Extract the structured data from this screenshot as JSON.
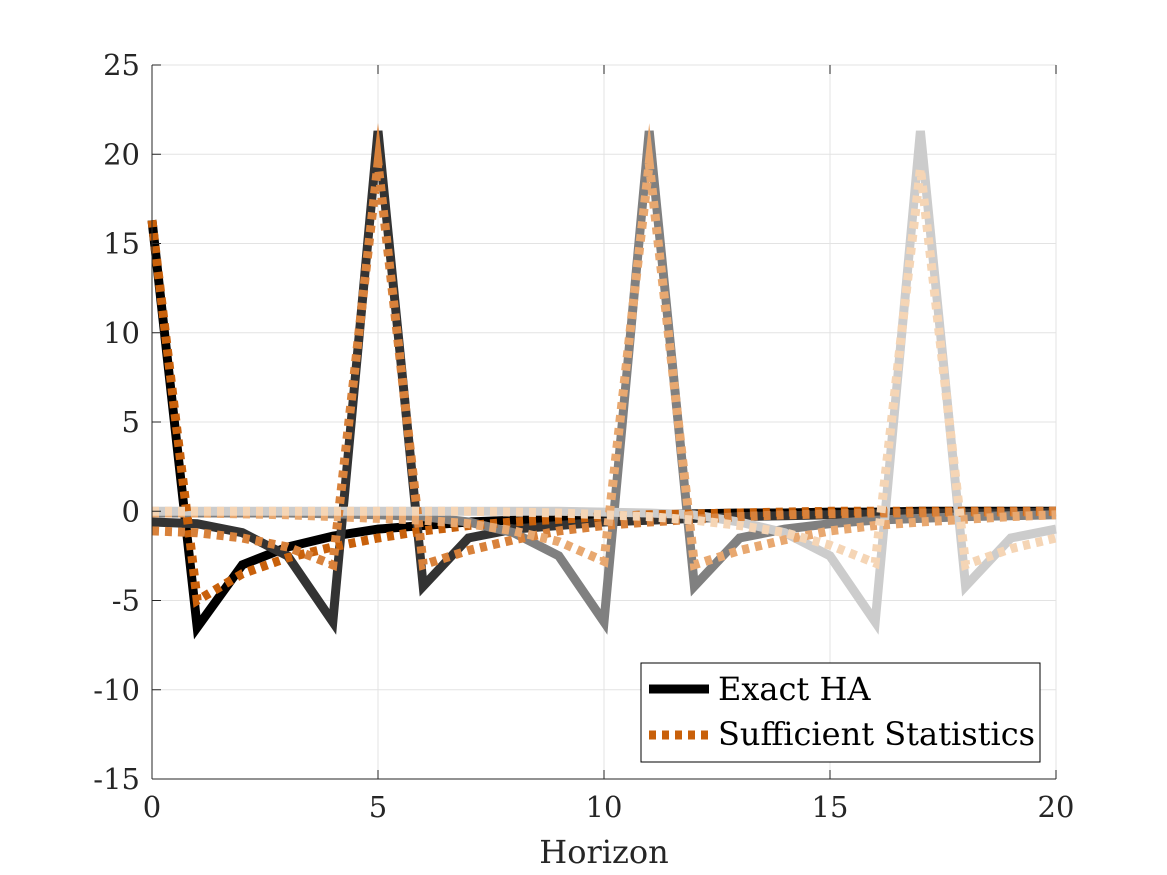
{
  "chart_data": {
    "type": "line",
    "title": "",
    "xlabel": "Horizon",
    "ylabel": "",
    "xlim": [
      0,
      20
    ],
    "ylim": [
      -15,
      25
    ],
    "xticks": [
      0,
      5,
      10,
      15,
      20
    ],
    "yticks": [
      -15,
      -10,
      -5,
      0,
      5,
      10,
      15,
      20,
      25
    ],
    "xtick_labels": [
      "0",
      "5",
      "10",
      "15",
      "20"
    ],
    "ytick_labels": [
      "-15",
      "-10",
      "-5",
      "0",
      "5",
      "10",
      "15",
      "20",
      "25"
    ],
    "grid": true,
    "legend_position": "bottom-right",
    "legend": [
      {
        "label": "Exact HA",
        "color": "#000000",
        "style": "solid"
      },
      {
        "label": "Sufficient Statistics",
        "color": "#c8600a",
        "style": "dotted"
      }
    ],
    "series": [
      {
        "group": "Exact HA",
        "shock_horizon": 0,
        "color": "#000000",
        "style": "solid",
        "x": [
          0,
          1,
          2,
          3,
          4,
          5,
          6,
          7,
          8,
          9,
          10,
          11,
          12,
          13,
          14,
          15,
          16,
          17,
          18,
          19,
          20
        ],
        "y": [
          16.3,
          -6.5,
          -3.0,
          -2.0,
          -1.4,
          -1.0,
          -0.8,
          -0.6,
          -0.5,
          -0.4,
          -0.3,
          -0.2,
          -0.15,
          -0.1,
          -0.1,
          -0.05,
          -0.05,
          0,
          0,
          0,
          0
        ]
      },
      {
        "group": "Exact HA",
        "shock_horizon": 6,
        "color": "#333333",
        "style": "solid",
        "x": [
          0,
          1,
          2,
          3,
          4,
          5,
          6,
          7,
          8,
          9,
          10,
          11,
          12,
          13,
          14,
          15,
          16,
          17,
          18,
          19,
          20
        ],
        "y": [
          -0.6,
          -0.7,
          -1.2,
          -2.5,
          -6.2,
          21.3,
          -4.2,
          -1.5,
          -1.0,
          -0.8,
          -0.6,
          -0.5,
          -0.4,
          -0.3,
          -0.25,
          -0.2,
          -0.15,
          -0.1,
          -0.1,
          -0.1,
          -0.05
        ]
      },
      {
        "group": "Exact HA",
        "shock_horizon": 12,
        "color": "#808080",
        "style": "solid",
        "x": [
          0,
          1,
          2,
          3,
          4,
          5,
          6,
          7,
          8,
          9,
          10,
          11,
          12,
          13,
          14,
          15,
          16,
          17,
          18,
          19,
          20
        ],
        "y": [
          -0.1,
          -0.1,
          -0.1,
          -0.1,
          -0.15,
          -0.2,
          -0.3,
          -0.6,
          -1.2,
          -2.5,
          -6.2,
          21.3,
          -4.2,
          -1.5,
          -1.0,
          -0.7,
          -0.5,
          -0.4,
          -0.3,
          -0.25,
          -0.2
        ]
      },
      {
        "group": "Exact HA",
        "shock_horizon": 18,
        "color": "#cccccc",
        "style": "solid",
        "x": [
          0,
          1,
          2,
          3,
          4,
          5,
          6,
          7,
          8,
          9,
          10,
          11,
          12,
          13,
          14,
          15,
          16,
          17,
          18,
          19,
          20
        ],
        "y": [
          0,
          0,
          0,
          0,
          0,
          0,
          0,
          0,
          0,
          0,
          -0.05,
          -0.1,
          -0.2,
          -0.6,
          -1.2,
          -2.5,
          -6.2,
          21.3,
          -4.2,
          -1.5,
          -1.0
        ]
      },
      {
        "group": "Sufficient Statistics",
        "shock_horizon": 0,
        "color": "#c8600a",
        "style": "dotted",
        "x": [
          0,
          1,
          2,
          3,
          4,
          5,
          6,
          7,
          8,
          9,
          10,
          11,
          12,
          13,
          14,
          15,
          16,
          17,
          18,
          19,
          20
        ],
        "y": [
          16.3,
          -5.0,
          -3.5,
          -2.6,
          -2.0,
          -1.5,
          -1.1,
          -0.8,
          -0.6,
          -0.45,
          -0.3,
          -0.2,
          -0.15,
          -0.1,
          -0.05,
          0,
          0,
          0,
          0,
          0,
          0
        ]
      },
      {
        "group": "Sufficient Statistics",
        "shock_horizon": 6,
        "color": "#d8813a",
        "style": "dotted",
        "x": [
          0,
          1,
          2,
          3,
          4,
          5,
          6,
          7,
          8,
          9,
          10,
          11,
          12,
          13,
          14,
          15,
          16,
          17,
          18,
          19,
          20
        ],
        "y": [
          -1.1,
          -1.2,
          -1.5,
          -2.0,
          -3.0,
          19.5,
          -3.0,
          -2.2,
          -1.6,
          -1.1,
          -0.8,
          -0.6,
          -0.45,
          -0.3,
          -0.2,
          -0.15,
          -0.1,
          -0.1,
          -0.05,
          -0.05,
          0
        ]
      },
      {
        "group": "Sufficient Statistics",
        "shock_horizon": 12,
        "color": "#e8a870",
        "style": "dotted",
        "x": [
          0,
          1,
          2,
          3,
          4,
          5,
          6,
          7,
          8,
          9,
          10,
          11,
          12,
          13,
          14,
          15,
          16,
          17,
          18,
          19,
          20
        ],
        "y": [
          -0.1,
          -0.1,
          -0.15,
          -0.2,
          -0.3,
          -0.4,
          -0.5,
          -0.7,
          -1.1,
          -1.7,
          -2.8,
          19.5,
          -3.0,
          -2.2,
          -1.6,
          -1.1,
          -0.8,
          -0.6,
          -0.45,
          -0.3,
          -0.2
        ]
      },
      {
        "group": "Sufficient Statistics",
        "shock_horizon": 18,
        "color": "#f5d5b5",
        "style": "dotted",
        "x": [
          0,
          1,
          2,
          3,
          4,
          5,
          6,
          7,
          8,
          9,
          10,
          11,
          12,
          13,
          14,
          15,
          16,
          17,
          18,
          19,
          20
        ],
        "y": [
          0,
          0,
          0,
          0,
          0,
          0,
          0,
          0,
          -0.05,
          -0.1,
          -0.2,
          -0.3,
          -0.5,
          -0.8,
          -1.2,
          -1.9,
          -2.9,
          19.2,
          -3.0,
          -2.1,
          -1.5
        ]
      }
    ]
  }
}
